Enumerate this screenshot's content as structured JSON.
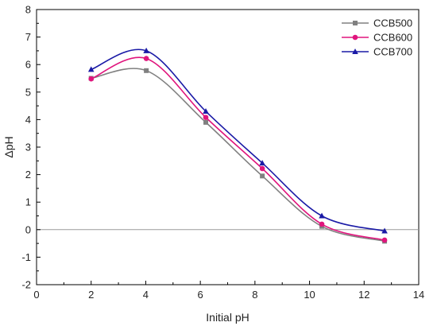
{
  "chart_data": {
    "type": "line",
    "title": "",
    "xlabel": "Initial pH",
    "ylabel": "ΔpH",
    "xlim": [
      0,
      14
    ],
    "ylim": [
      -2,
      8
    ],
    "x_ticks": [
      0,
      2,
      4,
      6,
      8,
      10,
      12,
      14
    ],
    "y_ticks": [
      -2,
      -1,
      0,
      1,
      2,
      3,
      4,
      5,
      6,
      7,
      8
    ],
    "grid": false,
    "reference_line_y": 0,
    "legend_position": "top-right",
    "series": [
      {
        "name": "CCB500",
        "color": "#808080",
        "marker": "square",
        "x": [
          2.0,
          4.02,
          6.2,
          8.27,
          10.45,
          12.75
        ],
        "y": [
          5.5,
          5.78,
          3.9,
          1.95,
          0.12,
          -0.42
        ]
      },
      {
        "name": "CCB600",
        "color": "#e0157d",
        "marker": "circle",
        "x": [
          2.0,
          4.02,
          6.2,
          8.27,
          10.45,
          12.75
        ],
        "y": [
          5.48,
          6.22,
          4.08,
          2.22,
          0.2,
          -0.38
        ]
      },
      {
        "name": "CCB700",
        "color": "#1a1aa6",
        "marker": "triangle",
        "x": [
          2.0,
          4.02,
          6.2,
          8.27,
          10.45,
          12.75
        ],
        "y": [
          5.82,
          6.5,
          4.3,
          2.42,
          0.5,
          -0.05
        ]
      }
    ]
  }
}
